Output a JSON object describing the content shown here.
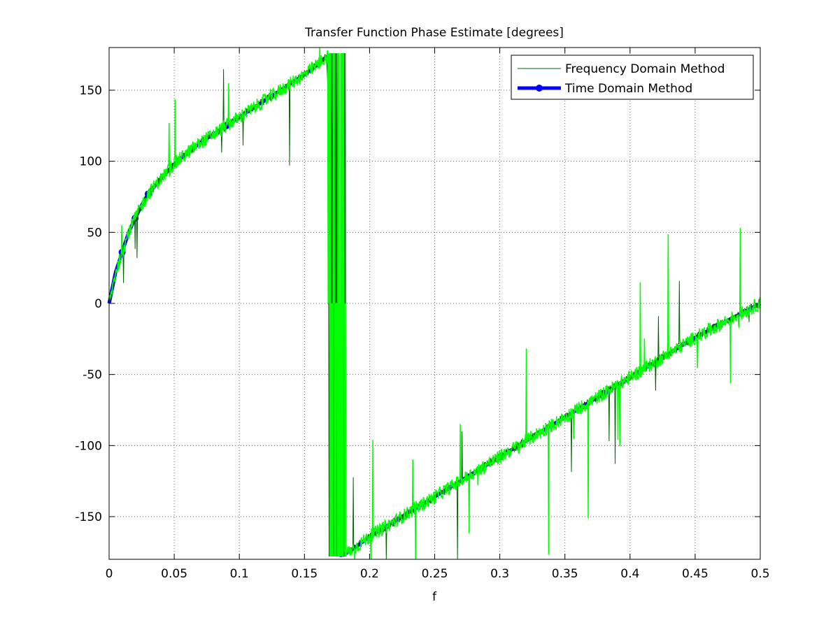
{
  "chart_data": {
    "type": "line",
    "title": "Transfer Function Phase Estimate [degrees]",
    "xlabel": "f",
    "ylabel": "",
    "xlim": [
      0,
      0.5
    ],
    "ylim": [
      -180,
      180
    ],
    "x_ticks": [
      0,
      0.05,
      0.1,
      0.15,
      0.2,
      0.25,
      0.3,
      0.35,
      0.4,
      0.45,
      0.5
    ],
    "x_tick_labels": [
      "0",
      "0.05",
      "0.1",
      "0.15",
      "0.2",
      "0.25",
      "0.3",
      "0.35",
      "0.4",
      "0.45",
      "0.5"
    ],
    "y_ticks": [
      150,
      100,
      50,
      0,
      -50,
      -100,
      -150
    ],
    "y_tick_labels": [
      "150",
      "100",
      "50",
      "0",
      "-50",
      "-100",
      "-150"
    ],
    "grid": true,
    "legend_position": "top-right",
    "series": [
      {
        "name": "Frequency Domain Method",
        "color": "#006400",
        "style": "thin line",
        "x": [
          0,
          0.005,
          0.01,
          0.015,
          0.02,
          0.025,
          0.03,
          0.04,
          0.05,
          0.06,
          0.07,
          0.08,
          0.09,
          0.1,
          0.11,
          0.12,
          0.13,
          0.14,
          0.15,
          0.16,
          0.165,
          0.168,
          0.172,
          0.175,
          0.178,
          0.18,
          0.19,
          0.2,
          0.25,
          0.3,
          0.35,
          0.4,
          0.45,
          0.5
        ],
        "y": [
          0,
          22,
          36,
          50,
          60,
          69,
          77,
          88,
          98,
          106,
          113,
          119,
          125,
          131,
          137,
          143,
          149,
          155,
          161,
          168,
          172,
          174,
          90,
          -60,
          -176,
          -177,
          -171,
          -164,
          -136,
          -108,
          -80,
          -52,
          -24,
          0
        ]
      },
      {
        "name": "Time Domain Method",
        "color": "#0000FF",
        "style": "thick line with circle markers",
        "x": [
          0,
          0.005,
          0.01,
          0.015,
          0.02,
          0.025,
          0.03,
          0.04,
          0.05,
          0.06,
          0.07,
          0.08,
          0.09,
          0.1,
          0.11,
          0.12,
          0.13,
          0.14,
          0.15,
          0.16,
          0.165,
          0.168,
          0.172,
          0.175,
          0.178,
          0.18,
          0.19,
          0.2,
          0.25,
          0.3,
          0.35,
          0.4,
          0.45,
          0.5
        ],
        "y": [
          0,
          22,
          36,
          50,
          60,
          69,
          77,
          88,
          98,
          106,
          113,
          119,
          125,
          131,
          137,
          143,
          149,
          155,
          161,
          168,
          172,
          174,
          90,
          -60,
          -176,
          -177,
          -171,
          -164,
          -136,
          -108,
          -80,
          -52,
          -24,
          0
        ],
        "marker_x": [
          0.01,
          0.02,
          0.03,
          0.09,
          0.178,
          0.3,
          0.38,
          0.465
        ]
      },
      {
        "name": "",
        "color": "#00FF00",
        "style": "thin noisy line",
        "x": [
          0,
          0.005,
          0.01,
          0.015,
          0.02,
          0.025,
          0.03,
          0.04,
          0.05,
          0.06,
          0.07,
          0.08,
          0.09,
          0.1,
          0.11,
          0.12,
          0.13,
          0.14,
          0.15,
          0.16,
          0.165,
          0.168,
          0.172,
          0.175,
          0.178,
          0.18,
          0.19,
          0.2,
          0.25,
          0.3,
          0.35,
          0.4,
          0.45,
          0.5
        ],
        "y": [
          0,
          22,
          36,
          50,
          60,
          69,
          77,
          88,
          98,
          106,
          113,
          119,
          125,
          131,
          137,
          143,
          149,
          155,
          161,
          168,
          172,
          174,
          90,
          -60,
          -176,
          -177,
          -171,
          -164,
          -136,
          -108,
          -80,
          -52,
          -24,
          0
        ]
      }
    ]
  }
}
